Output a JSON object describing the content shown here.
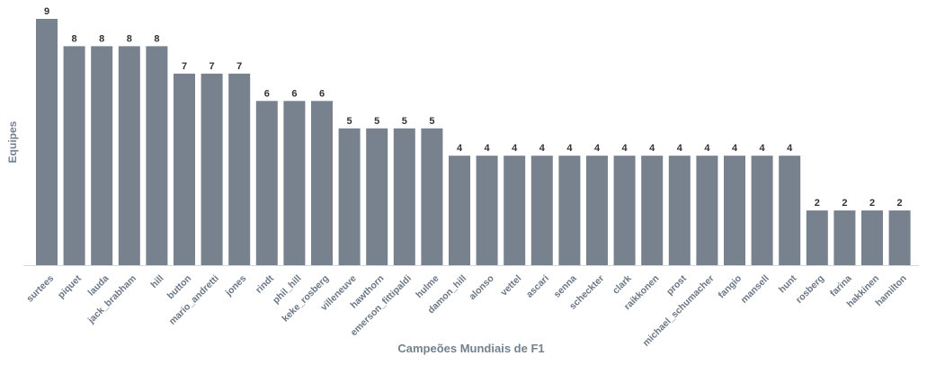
{
  "chart_data": {
    "type": "bar",
    "xlabel": "Campeões Mundiais de F1",
    "ylabel": "Equipes",
    "ylim": [
      0,
      9
    ],
    "bar_color": "#78828f",
    "categories": [
      "surtees",
      "piquet",
      "lauda",
      "jack_brabham",
      "hill",
      "button",
      "mario_andretti",
      "jones",
      "rindt",
      "phil_hill",
      "keke_rosberg",
      "villeneuve",
      "hawthorn",
      "emerson_fittipaldi",
      "hulme",
      "damon_hill",
      "alonso",
      "vettel",
      "ascari",
      "senna",
      "scheckter",
      "clark",
      "raikkonen",
      "prost",
      "michael_schumacher",
      "fangio",
      "mansell",
      "hunt",
      "rosberg",
      "farina",
      "hakkinen",
      "hamilton"
    ],
    "values": [
      9,
      8,
      8,
      8,
      8,
      7,
      7,
      7,
      6,
      6,
      6,
      5,
      5,
      5,
      5,
      4,
      4,
      4,
      4,
      4,
      4,
      4,
      4,
      4,
      4,
      4,
      4,
      4,
      2,
      2,
      2,
      2
    ]
  }
}
